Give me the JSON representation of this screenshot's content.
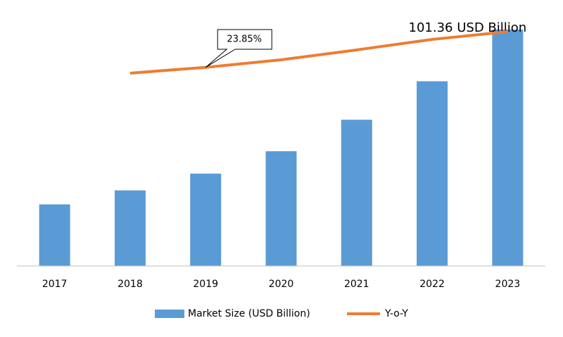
{
  "chart_data": {
    "type": "bar",
    "categories": [
      "2017",
      "2018",
      "2019",
      "2020",
      "2021",
      "2022",
      "2023"
    ],
    "series": [
      {
        "name": "Market Size (USD Billion)",
        "color": "#5b9bd5",
        "values": [
          26.4,
          32.4,
          39.6,
          49.2,
          62.7,
          79.2,
          101.36
        ],
        "value_labels": [
          null,
          null,
          null,
          null,
          null,
          null,
          "101.36 USD Billion"
        ]
      },
      {
        "name": "Y-o-Y",
        "type": "line",
        "axis": "y2",
        "color": "#ed7d31",
        "values": [
          null,
          23.15,
          23.85,
          24.75,
          25.94,
          27.2,
          28.13
        ],
        "value_labels": [
          null,
          null,
          "23.85%",
          null,
          null,
          null,
          null
        ]
      }
    ],
    "ylim": [
      0,
      105
    ],
    "y2lim": [
      0,
      29.4
    ],
    "legend": "bottom"
  }
}
